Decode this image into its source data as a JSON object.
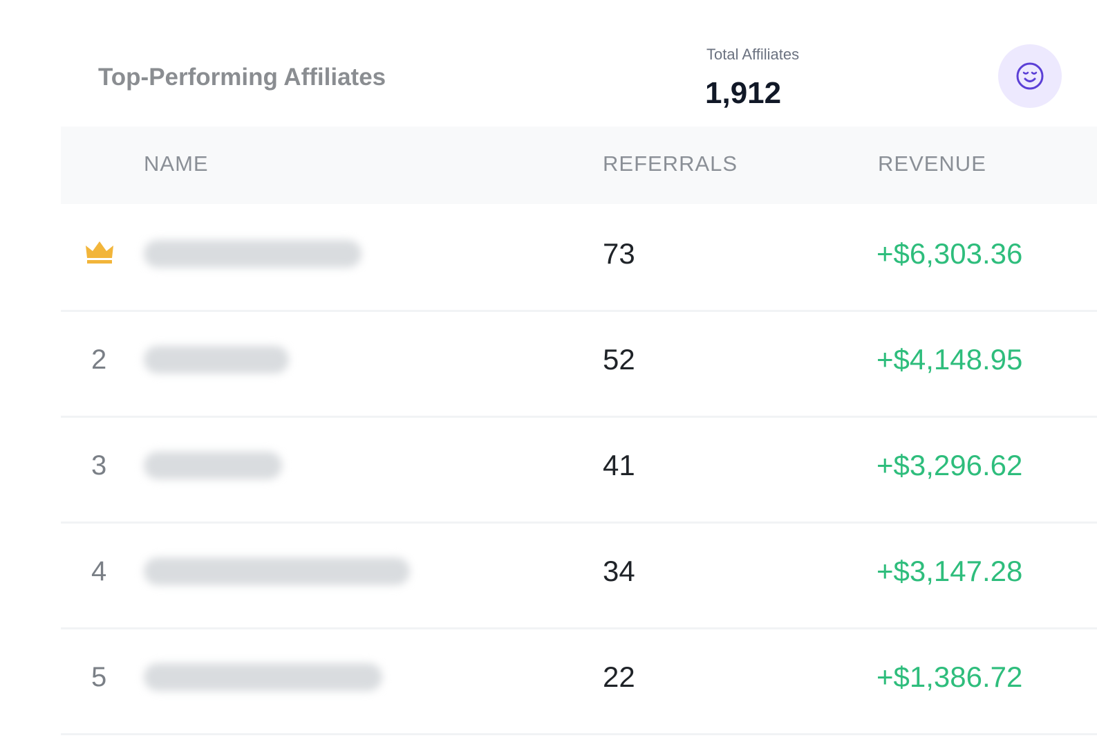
{
  "header": {
    "title": "Top-Performing Affiliates",
    "total_label": "Total Affiliates",
    "total_value": "1,912",
    "icon": "smiley-icon"
  },
  "table": {
    "columns": [
      "NAME",
      "REFERRALS",
      "REVENUE"
    ],
    "rows": [
      {
        "rank": "",
        "rank_icon": "crown-icon",
        "referrals": "73",
        "revenue": "+$6,303.36"
      },
      {
        "rank": "2",
        "referrals": "52",
        "revenue": "+$4,148.95"
      },
      {
        "rank": "3",
        "referrals": "41",
        "revenue": "+$3,296.62"
      },
      {
        "rank": "4",
        "referrals": "34",
        "revenue": "+$3,147.28"
      },
      {
        "rank": "5",
        "referrals": "22",
        "revenue": "+$1,386.72"
      }
    ]
  },
  "colors": {
    "accent": "#5b3fd6",
    "revenue": "#2ebd7c",
    "crown": "#f2b53a"
  }
}
